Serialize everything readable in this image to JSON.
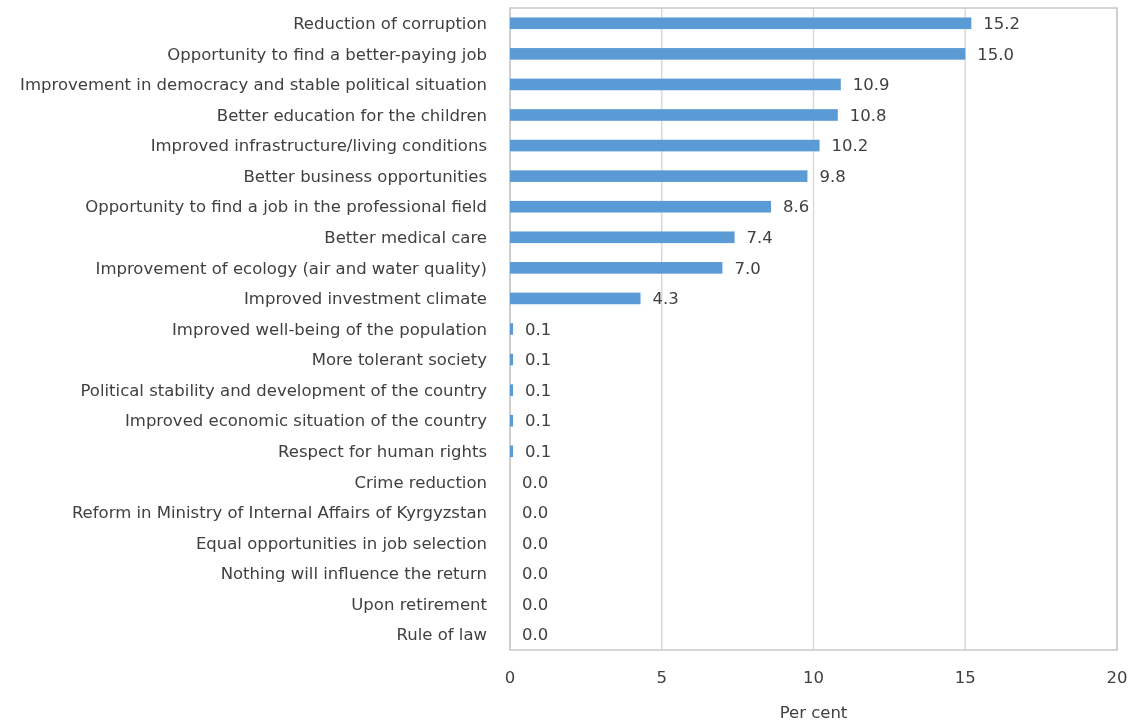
{
  "chart_data": {
    "type": "bar",
    "orientation": "horizontal",
    "categories": [
      "Reduction of corruption",
      "Opportunity to find a better-paying job",
      "Improvement in democracy and stable political situation",
      "Better education for the children",
      "Improved infrastructure/living conditions",
      "Better business opportunities",
      "Opportunity to find a job in the professional field",
      "Better medical care",
      "Improvement of ecology (air and water quality)",
      "Improved investment climate",
      "Improved well-being of the population",
      "More tolerant society",
      "Political stability and development of the country",
      "Improved economic situation of the country",
      "Respect for human rights",
      "Crime reduction",
      "Reform in Ministry of Internal Affairs of Kyrgyzstan",
      "Equal opportunities in job selection",
      "Nothing will influence the return",
      "Upon retirement",
      "Rule of law"
    ],
    "values": [
      15.2,
      15,
      10.9,
      10.8,
      10.2,
      9.8,
      8.6,
      7.4,
      7,
      4.3,
      0.1,
      0.1,
      0.1,
      0.1,
      0.1,
      0,
      0,
      0,
      0,
      0,
      0
    ],
    "value_labels": [
      "15.2",
      "15.0",
      "10.9",
      "10.8",
      "10.2",
      "9.8",
      "8.6",
      "7.4",
      "7.0",
      "4.3",
      "0.1",
      "0.1",
      "0.1",
      "0.1",
      "0.1",
      "0.0",
      "0.0",
      "0.0",
      "0.0",
      "0.0",
      "0.0"
    ],
    "color": "#5b9bd5",
    "xlim": [
      0,
      20
    ],
    "xticks": [
      0,
      5,
      10,
      15,
      20
    ],
    "xlabel": "Per cent",
    "grid": "x"
  }
}
